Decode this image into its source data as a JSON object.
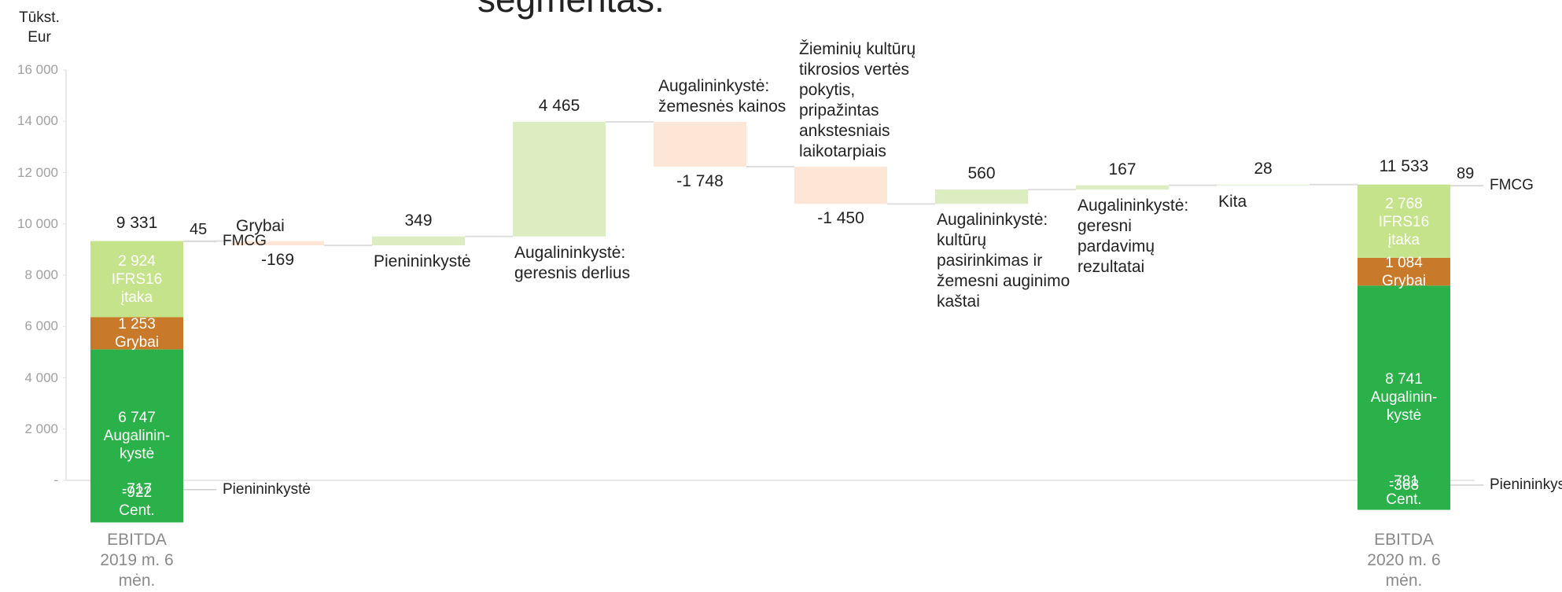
{
  "chart_data": {
    "type": "waterfall",
    "title": "segmentas:",
    "y_label": "Tūkst. Eur",
    "ylim": [
      0,
      16000
    ],
    "yticks": [
      {
        "value": 0,
        "label": "-"
      },
      {
        "value": 2000,
        "label": "2 000"
      },
      {
        "value": 4000,
        "label": "4 000"
      },
      {
        "value": 6000,
        "label": "6 000"
      },
      {
        "value": 8000,
        "label": "8 000"
      },
      {
        "value": 10000,
        "label": "10 000"
      },
      {
        "value": 12000,
        "label": "12 000"
      },
      {
        "value": 14000,
        "label": "14 000"
      },
      {
        "value": 16000,
        "label": "16 000"
      }
    ],
    "increase_color": "#dcedc1",
    "decrease_color": "#fde6d6",
    "start": {
      "category": "EBITDA 2019 m. 6 mėn.",
      "total": 9331,
      "total_label": "9 331",
      "segments": [
        {
          "name": "Pienininkystė",
          "value": -717,
          "color": "#9dd5e0"
        },
        {
          "name": "Cent. OPEX",
          "value": -922,
          "color": "#f2a9bb"
        },
        {
          "name": "Augalinin-kystė",
          "value": 6747,
          "value_label": "6 747",
          "color": "#2bb14a"
        },
        {
          "name": "Grybai",
          "value": 1253,
          "value_label": "1 253",
          "color": "#c87a2a"
        },
        {
          "name": "IFRS16 įtaka",
          "value": 2924,
          "value_label": "2 924",
          "color": "#c5e38a"
        },
        {
          "name": "FMCG",
          "value": 45,
          "color": "#c5e38a"
        }
      ]
    },
    "steps": [
      {
        "label": "Grybai",
        "value": -169
      },
      {
        "label": "Pienininkystė",
        "value": 349
      },
      {
        "label": "Augalininkystė: geresnis derlius",
        "value": 4465,
        "value_label": "4 465"
      },
      {
        "label": "Augalininkystė: žemesnės kainos",
        "value": -1748,
        "value_label": "-1 748"
      },
      {
        "label": "Žieminių kultūrų tikrosios vertės pokytis, pripažintas ankstesniais laikotarpiais",
        "value": -1450,
        "value_label": "-1 450"
      },
      {
        "label": "Augalininkystė: kultūrų pasirinkimas ir žemesni auginimo kaštai",
        "value": 560
      },
      {
        "label": "Augalininkystė: geresni pardavimų rezultatai",
        "value": 167
      },
      {
        "label": "Kita",
        "value": 28
      }
    ],
    "end": {
      "category": "EBITDA 2020 m. 6 mėn.",
      "total": 11533,
      "total_label": "11 533",
      "segments": [
        {
          "name": "Pienininkystė",
          "value": -368,
          "color": "#9dd5e0"
        },
        {
          "name": "Cent. OPEX",
          "value": -781,
          "color": "#f2a9bb"
        },
        {
          "name": "Augalinin-kystė",
          "value": 8741,
          "value_label": "8 741",
          "color": "#2bb14a"
        },
        {
          "name": "Grybai",
          "value": 1084,
          "value_label": "1 084",
          "color": "#c87a2a"
        },
        {
          "name": "IFRS16 įtaka",
          "value": 2768,
          "value_label": "2 768",
          "color": "#c5e38a"
        },
        {
          "name": "FMCG",
          "value": 89,
          "color": "#c5e38a"
        }
      ]
    }
  }
}
